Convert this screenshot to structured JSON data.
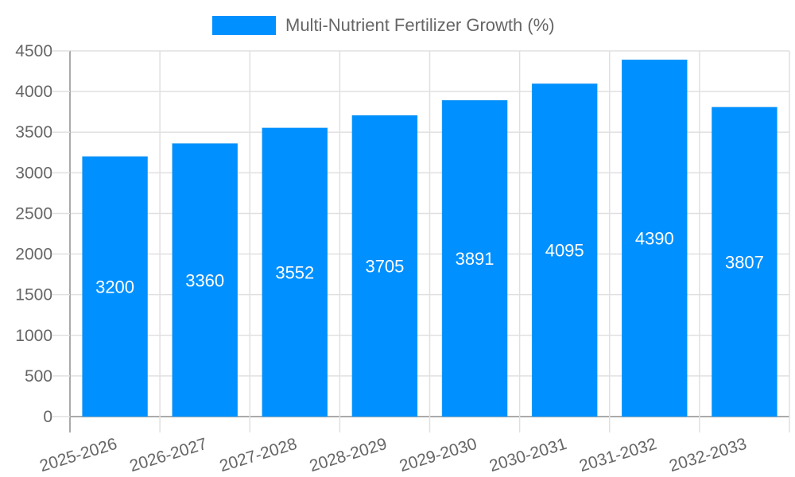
{
  "chart_data": {
    "type": "bar",
    "title": "",
    "legend": [
      "Multi-Nutrient Fertilizer Growth (%)"
    ],
    "legend_position": "top",
    "categories": [
      "2025-2026",
      "2026-2027",
      "2027-2028",
      "2028-2029",
      "2029-2030",
      "2030-2031",
      "2031-2032",
      "2032-2033"
    ],
    "series": [
      {
        "name": "Multi-Nutrient Fertilizer Growth (%)",
        "values": [
          3200,
          3360,
          3552,
          3705,
          3891,
          4095,
          4390,
          3807
        ],
        "color": "#0090ff"
      }
    ],
    "xlabel": "",
    "ylabel": "",
    "ylim": [
      0,
      4500
    ],
    "yticks": [
      0,
      500,
      1000,
      1500,
      2000,
      2500,
      3000,
      3500,
      4000,
      4500
    ],
    "grid": true,
    "data_labels": true
  },
  "legend": {
    "label": "Multi-Nutrient Fertilizer Growth (%)"
  }
}
